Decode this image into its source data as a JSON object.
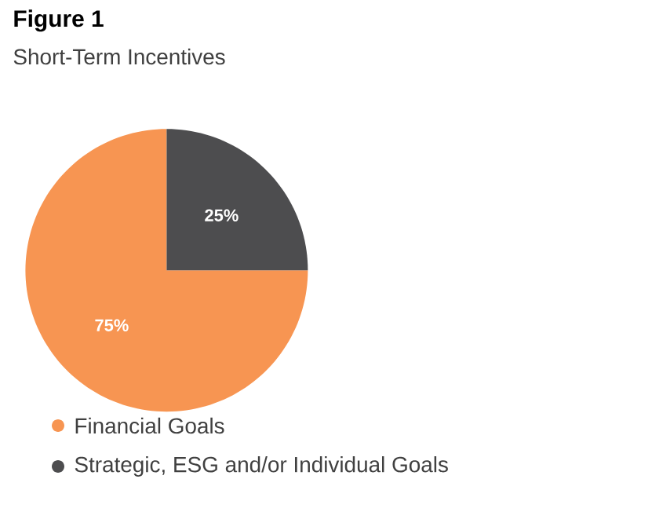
{
  "chart_data": {
    "type": "pie",
    "title": "Figure 1",
    "subtitle": "Short-Term Incentives",
    "categories": [
      "Financial Goals",
      "Strategic, ESG and/or Individual Goals"
    ],
    "values": [
      75,
      25
    ],
    "colors": [
      "#f79552",
      "#4d4d4f"
    ],
    "value_labels": [
      "75%",
      "25%"
    ],
    "legend": "bottom"
  }
}
